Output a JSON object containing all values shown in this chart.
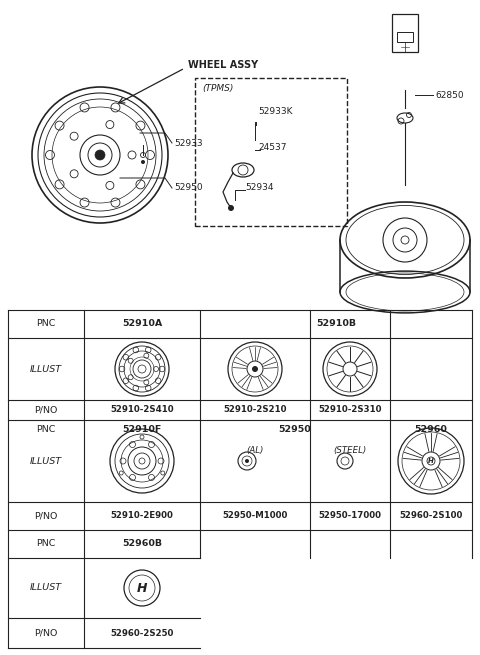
{
  "bg_color": "#ffffff",
  "dk": "#222222",
  "wheel_assy_label": "WHEEL ASSY",
  "tpms_label": "(TPMS)",
  "part_numbers_top": [
    "52933",
    "52950",
    "52933K",
    "24537",
    "52934",
    "62850"
  ],
  "table_cols": [
    8,
    84,
    200,
    310,
    390,
    472
  ],
  "table_rows_group1": [
    310,
    338,
    400,
    420
  ],
  "table_rows_group2": [
    420,
    502,
    530,
    558
  ],
  "table_rows_group3": [
    558,
    618,
    648
  ],
  "row1_pnc": [
    "PNC",
    "52910A",
    "52910B"
  ],
  "row1_pno": [
    "P/NO",
    "52910-2S410",
    "52910-2S210",
    "52910-2S310"
  ],
  "row2_pnc": [
    "PNC",
    "52910F",
    "52950",
    "52960"
  ],
  "row2_sub": [
    "(AL)",
    "(STEEL)"
  ],
  "row2_pno": [
    "P/NO",
    "52910-2E900",
    "52950-M1000",
    "52950-17000",
    "52960-2S100"
  ],
  "row3_pnc": [
    "PNC",
    "52960B"
  ],
  "row3_pno": [
    "P/NO",
    "52960-2S250"
  ],
  "illust_label": "ILLUST"
}
